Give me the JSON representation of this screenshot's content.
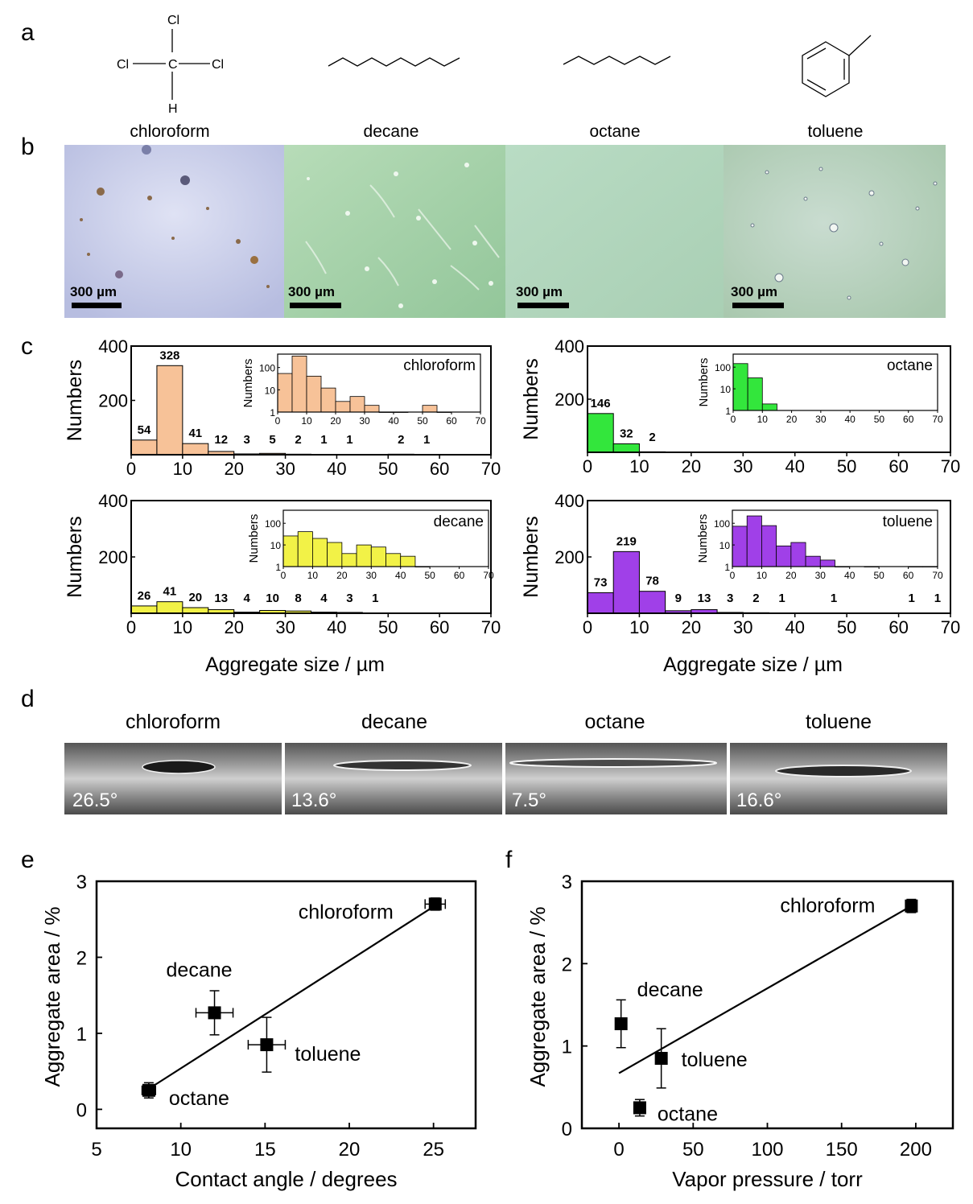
{
  "panels": {
    "a": {
      "letter": "a"
    },
    "b": {
      "letter": "b"
    },
    "c": {
      "letter": "c"
    },
    "d": {
      "letter": "d"
    },
    "e": {
      "letter": "e"
    },
    "f": {
      "letter": "f"
    }
  },
  "molecules": {
    "chloroform_atoms": [
      "Cl",
      "Cl",
      "C",
      "Cl",
      "H"
    ],
    "labels": [
      "chloroform",
      "decane",
      "octane",
      "toluene"
    ]
  },
  "micrographs": {
    "scale_bar": "300 µm",
    "colors": [
      "#c9cde6",
      "#a9d1aa",
      "#b8d8c0",
      "#bdd3c4"
    ]
  },
  "contact_images": {
    "labels": [
      "chloroform",
      "decane",
      "octane",
      "toluene"
    ],
    "angles": [
      "26.5°",
      "13.6°",
      "7.5°",
      "16.6°"
    ]
  },
  "chart_data": [
    {
      "id": "hist-chloroform",
      "type": "bar",
      "legend": "chloroform",
      "color": "#f7c298",
      "bin_width": 5,
      "bins": [
        0,
        5,
        10,
        15,
        20,
        25,
        30,
        35,
        40,
        45,
        50,
        55
      ],
      "values": [
        54,
        328,
        41,
        12,
        3,
        5,
        2,
        1,
        1,
        0,
        2,
        1
      ],
      "labels": [
        "54",
        "328",
        "41",
        "12",
        "3",
        "5",
        "2",
        "1",
        "1",
        "",
        "2",
        "1"
      ],
      "ylabel": "Numbers",
      "ylim": [
        0,
        400
      ],
      "yticks": [
        "200",
        "400"
      ],
      "xlim": [
        0,
        70
      ],
      "xticks": [
        "0",
        "10",
        "20",
        "30",
        "40",
        "50",
        "60",
        "70"
      ],
      "inset": {
        "type": "bar",
        "yscale": "log",
        "ylim": [
          1,
          400
        ],
        "yticks": [
          "1",
          "10",
          "100"
        ],
        "ylabel": "Numbers",
        "xticks": [
          "0",
          "10",
          "20",
          "30",
          "40",
          "50",
          "60",
          "70"
        ]
      }
    },
    {
      "id": "hist-octane",
      "type": "bar",
      "legend": "octane",
      "color": "#33e63c",
      "bin_width": 5,
      "bins": [
        0,
        5,
        10
      ],
      "values": [
        146,
        32,
        2
      ],
      "labels": [
        "146",
        "32",
        "2"
      ],
      "ylabel": "Numbers",
      "ylim": [
        0,
        400
      ],
      "yticks": [
        "200",
        "400"
      ],
      "xlim": [
        0,
        70
      ],
      "xticks": [
        "0",
        "10",
        "20",
        "30",
        "40",
        "50",
        "60",
        "70"
      ],
      "inset": {
        "type": "bar",
        "yscale": "log",
        "ylim": [
          1,
          400
        ],
        "yticks": [
          "1",
          "10",
          "100"
        ],
        "ylabel": "Numbers",
        "xticks": [
          "0",
          "10",
          "20",
          "30",
          "40",
          "50",
          "60",
          "70"
        ]
      }
    },
    {
      "id": "hist-decane",
      "type": "bar",
      "legend": "decane",
      "color": "#f2f247",
      "bin_width": 5,
      "bins": [
        0,
        5,
        10,
        15,
        20,
        25,
        30,
        35,
        40,
        45
      ],
      "values": [
        26,
        41,
        20,
        13,
        4,
        10,
        8,
        4,
        3,
        1
      ],
      "labels": [
        "26",
        "41",
        "20",
        "13",
        "4",
        "10",
        "8",
        "4",
        "3",
        "1"
      ],
      "ylabel": "Numbers",
      "ylim": [
        0,
        400
      ],
      "yticks": [
        "200",
        "400"
      ],
      "xlim": [
        0,
        70
      ],
      "xticks": [
        "0",
        "10",
        "20",
        "30",
        "40",
        "50",
        "60",
        "70"
      ],
      "xlabel": "Aggregate size / µm",
      "inset": {
        "type": "bar",
        "yscale": "log",
        "ylim": [
          1,
          400
        ],
        "yticks": [
          "1",
          "10",
          "100"
        ],
        "ylabel": "Numbers",
        "xticks": [
          "0",
          "10",
          "20",
          "30",
          "40",
          "50",
          "60",
          "70"
        ]
      }
    },
    {
      "id": "hist-toluene",
      "type": "bar",
      "legend": "toluene",
      "color": "#a040e8",
      "bin_width": 5,
      "bins": [
        0,
        5,
        10,
        15,
        20,
        25,
        30,
        35,
        40,
        45,
        50,
        55,
        60,
        65
      ],
      "values": [
        73,
        219,
        78,
        9,
        13,
        3,
        2,
        1,
        0,
        1,
        0,
        0,
        1,
        1
      ],
      "labels": [
        "73",
        "219",
        "78",
        "9",
        "13",
        "3",
        "2",
        "1",
        "",
        "1",
        "",
        "",
        "1",
        "1"
      ],
      "ylabel": "Numbers",
      "ylim": [
        0,
        400
      ],
      "yticks": [
        "200",
        "400"
      ],
      "xlim": [
        0,
        70
      ],
      "xticks": [
        "0",
        "10",
        "20",
        "30",
        "40",
        "50",
        "60",
        "70"
      ],
      "xlabel": "Aggregate size / µm",
      "inset": {
        "type": "bar",
        "yscale": "log",
        "ylim": [
          1,
          400
        ],
        "yticks": [
          "1",
          "10",
          "100"
        ],
        "ylabel": "Numbers",
        "xticks": [
          "0",
          "10",
          "20",
          "30",
          "40",
          "50",
          "60",
          "70"
        ]
      }
    },
    {
      "id": "scatter-contact",
      "type": "scatter",
      "xlabel": "Contact angle / degrees",
      "ylabel": "Aggregate area / %",
      "xlim": [
        5,
        27.5
      ],
      "ylim": [
        -0.25,
        3
      ],
      "xticks": [
        "5",
        "10",
        "15",
        "20",
        "25"
      ],
      "yticks": [
        "0",
        "1",
        "2",
        "3"
      ],
      "points": [
        {
          "label": "chloroform",
          "x": 25.1,
          "y": 2.7,
          "xerr": 0.6,
          "yerr": 0.08
        },
        {
          "label": "decane",
          "x": 12.0,
          "y": 1.27,
          "xerr": 1.1,
          "yerr": 0.29
        },
        {
          "label": "toluene",
          "x": 15.1,
          "y": 0.85,
          "xerr": 1.1,
          "yerr": 0.36
        },
        {
          "label": "octane",
          "x": 8.1,
          "y": 0.25,
          "xerr": 0.4,
          "yerr": 0.1
        }
      ],
      "fit": {
        "x": [
          8.1,
          25.1
        ],
        "y": [
          0.27,
          2.68
        ]
      }
    },
    {
      "id": "scatter-vapor",
      "type": "scatter",
      "xlabel": "Vapor pressure / torr",
      "ylabel": "Aggregate area / %",
      "xlim": [
        -25,
        225
      ],
      "ylim": [
        0,
        3
      ],
      "xticks": [
        "0",
        "50",
        "100",
        "150",
        "200"
      ],
      "yticks": [
        "0",
        "1",
        "2",
        "3"
      ],
      "points": [
        {
          "label": "chloroform",
          "x": 197,
          "y": 2.7,
          "xerr": 0,
          "yerr": 0.08
        },
        {
          "label": "decane",
          "x": 1.4,
          "y": 1.27,
          "xerr": 0,
          "yerr": 0.29
        },
        {
          "label": "toluene",
          "x": 28.5,
          "y": 0.85,
          "xerr": 0,
          "yerr": 0.36
        },
        {
          "label": "octane",
          "x": 14,
          "y": 0.25,
          "xerr": 0,
          "yerr": 0.1
        }
      ],
      "fit": {
        "x": [
          0,
          197
        ],
        "y": [
          0.67,
          2.7
        ]
      }
    }
  ]
}
